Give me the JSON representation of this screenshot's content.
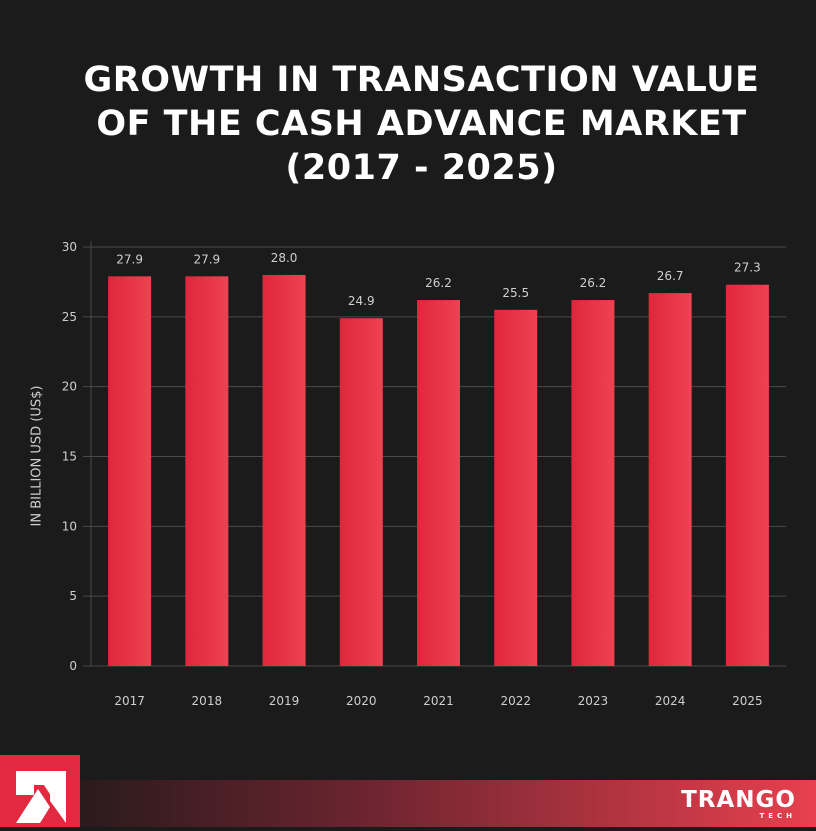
{
  "title_lines": [
    "GROWTH IN TRANSACTION VALUE",
    "OF THE CASH ADVANCE MARKET",
    "(2017 - 2025)"
  ],
  "chart_data": {
    "type": "bar",
    "title": "GROWTH IN TRANSACTION VALUE OF THE CASH ADVANCE MARKET (2017 - 2025)",
    "categories": [
      "2017",
      "2018",
      "2019",
      "2020",
      "2021",
      "2022",
      "2023",
      "2024",
      "2025"
    ],
    "values": [
      27.9,
      27.9,
      28.0,
      24.9,
      26.2,
      25.5,
      26.2,
      26.7,
      27.3
    ],
    "data_labels": [
      "27.9",
      "27.9",
      "28.0",
      "24.9",
      "26.2",
      "25.5",
      "26.2",
      "26.7",
      "27.3"
    ],
    "xlabel": "",
    "ylabel": "IN BILLION USD (US$)",
    "ylim": [
      0,
      30
    ],
    "yticks": [
      "0",
      "5",
      "10",
      "15",
      "20",
      "25",
      "30"
    ],
    "grid": true,
    "bar_color": "#e3293f"
  },
  "brand": {
    "name": "TRANGO",
    "sub": "TECH"
  },
  "colors": {
    "background": "#1b1b1b",
    "accent": "#e3293f"
  }
}
